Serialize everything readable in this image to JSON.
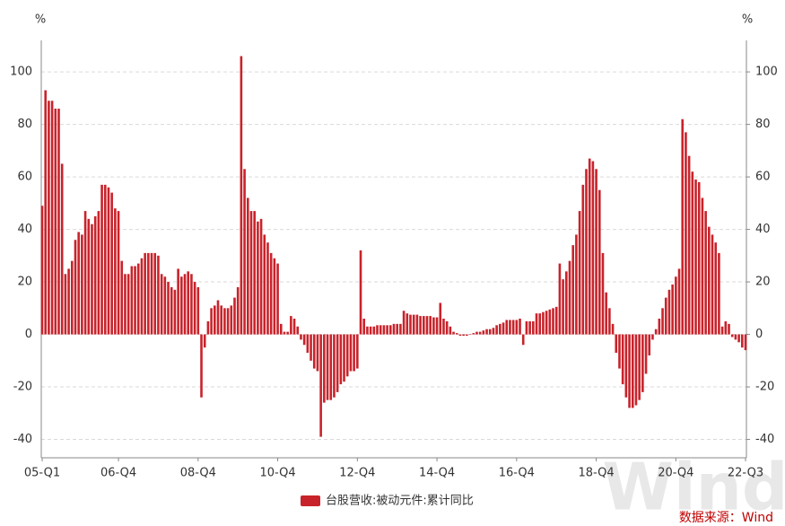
{
  "chart_data": {
    "type": "bar",
    "y_unit": "%",
    "y2_unit": "%",
    "legend": "台股营收:被动元件:累计同比",
    "source": "数据来源：Wind",
    "watermark": "Wind",
    "color": "#c8232b",
    "grid": true,
    "ylim": [
      -47,
      112
    ],
    "yticks": [
      -40,
      -20,
      0,
      20,
      40,
      60,
      80,
      100
    ],
    "y2lim": [
      -47,
      112
    ],
    "y2ticks": [
      -40,
      -20,
      0,
      20,
      40,
      60,
      80,
      100
    ],
    "categories": [
      "05-Q1",
      null,
      null,
      null,
      null,
      null,
      null,
      null,
      null,
      null,
      null,
      null,
      null,
      null,
      null,
      null,
      null,
      null,
      null,
      null,
      null,
      null,
      null,
      "06-Q4",
      null,
      null,
      null,
      null,
      null,
      null,
      null,
      null,
      null,
      null,
      null,
      null,
      null,
      null,
      null,
      null,
      null,
      null,
      null,
      null,
      null,
      null,
      null,
      "08-Q4",
      null,
      null,
      null,
      null,
      null,
      null,
      null,
      null,
      null,
      null,
      null,
      null,
      null,
      null,
      null,
      null,
      null,
      null,
      null,
      null,
      null,
      null,
      null,
      "10-Q4",
      null,
      null,
      null,
      null,
      null,
      null,
      null,
      null,
      null,
      null,
      null,
      null,
      null,
      null,
      null,
      null,
      null,
      null,
      null,
      null,
      null,
      null,
      null,
      "12-Q4",
      null,
      null,
      null,
      null,
      null,
      null,
      null,
      null,
      null,
      null,
      null,
      null,
      null,
      null,
      null,
      null,
      null,
      null,
      null,
      null,
      null,
      null,
      null,
      "14-Q4",
      null,
      null,
      null,
      null,
      null,
      null,
      null,
      null,
      null,
      null,
      null,
      null,
      null,
      null,
      null,
      null,
      null,
      null,
      null,
      null,
      null,
      null,
      null,
      "16-Q4",
      null,
      null,
      null,
      null,
      null,
      null,
      null,
      null,
      null,
      null,
      null,
      null,
      null,
      null,
      null,
      null,
      null,
      null,
      null,
      null,
      null,
      null,
      null,
      "18-Q4",
      null,
      null,
      null,
      null,
      null,
      null,
      null,
      null,
      null,
      null,
      null,
      null,
      null,
      null,
      null,
      null,
      null,
      null,
      null,
      null,
      null,
      null,
      null,
      "20-Q4",
      null,
      null,
      null,
      null,
      null,
      null,
      null,
      null,
      null,
      null,
      null,
      null,
      null,
      null,
      null,
      null,
      null,
      null,
      null,
      null,
      "22-Q3"
    ],
    "values": [
      49,
      93,
      89,
      89,
      86,
      86,
      65,
      23,
      25,
      28,
      36,
      39,
      38,
      47,
      44,
      42,
      45,
      47,
      57,
      57,
      56,
      54,
      48,
      47,
      28,
      23,
      23,
      26,
      26,
      27,
      29,
      31,
      31,
      31,
      31,
      30,
      23,
      22,
      20,
      18,
      17,
      25,
      22,
      23,
      24,
      23,
      20,
      18,
      -24,
      -5,
      5,
      10,
      11,
      13,
      11,
      10,
      10,
      11,
      14,
      18,
      106,
      63,
      52,
      47,
      47,
      43,
      44,
      38,
      35,
      31,
      29,
      27,
      4,
      1,
      1,
      7,
      6,
      3,
      -2,
      -4,
      -7,
      -10,
      -13,
      -14,
      -39,
      -26,
      -25,
      -25,
      -24,
      -22,
      -19,
      -18,
      -16,
      -14,
      -14,
      -13,
      32,
      6,
      3,
      3,
      3,
      3.5,
      3.5,
      3.5,
      3.5,
      3.5,
      4,
      4,
      4,
      9,
      8,
      7.5,
      7.5,
      7.5,
      7,
      7,
      7,
      7,
      6.5,
      6.5,
      12,
      6,
      5,
      3,
      1,
      0.5,
      -0.5,
      -0.5,
      -0.5,
      0,
      0.5,
      1,
      1,
      1.5,
      2,
      2,
      2.5,
      3.5,
      4,
      4.5,
      5.5,
      5.5,
      5.5,
      5.5,
      6,
      -4,
      5,
      5,
      5,
      8,
      8,
      8.5,
      9,
      9.5,
      10,
      10.5,
      27,
      21,
      24,
      28,
      34,
      38,
      47,
      57,
      63,
      67,
      66,
      63,
      55,
      31,
      16,
      10,
      4,
      -7,
      -13,
      -19,
      -24,
      -28,
      -28,
      -27,
      -25,
      -22,
      -15,
      -8,
      -2,
      2,
      6,
      10,
      14,
      17,
      19,
      22,
      25,
      82,
      77,
      68,
      62,
      59,
      58,
      52,
      47,
      41,
      38,
      35,
      31,
      3,
      5,
      4,
      -1,
      -2,
      -3,
      -5,
      -6
    ]
  }
}
